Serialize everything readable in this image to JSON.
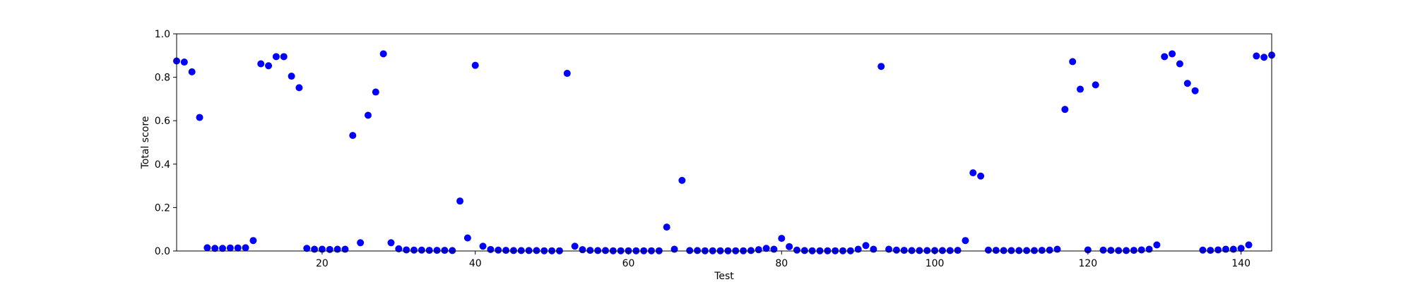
{
  "chart_data": {
    "type": "scatter",
    "xlabel": "Test",
    "ylabel": "Total score",
    "xlim": [
      1,
      144
    ],
    "ylim": [
      0,
      1.0
    ],
    "xticks": [
      20,
      40,
      60,
      80,
      100,
      120,
      140
    ],
    "yticks": [
      0.0,
      0.2,
      0.4,
      0.6,
      0.8,
      1.0
    ],
    "xtick_labels": [
      "20",
      "40",
      "60",
      "80",
      "100",
      "120",
      "140"
    ],
    "ytick_labels": [
      "0.0",
      "0.2",
      "0.4",
      "0.6",
      "0.8",
      "1.0"
    ],
    "grid": false,
    "marker_color": "#0000ff",
    "points": [
      [
        1,
        0.875
      ],
      [
        2,
        0.87
      ],
      [
        3,
        0.825
      ],
      [
        4,
        0.615
      ],
      [
        5,
        0.015
      ],
      [
        6,
        0.012
      ],
      [
        7,
        0.012
      ],
      [
        8,
        0.014
      ],
      [
        9,
        0.014
      ],
      [
        10,
        0.015
      ],
      [
        11,
        0.048
      ],
      [
        12,
        0.862
      ],
      [
        13,
        0.853
      ],
      [
        14,
        0.895
      ],
      [
        15,
        0.895
      ],
      [
        16,
        0.805
      ],
      [
        17,
        0.752
      ],
      [
        18,
        0.012
      ],
      [
        19,
        0.008
      ],
      [
        20,
        0.008
      ],
      [
        21,
        0.007
      ],
      [
        22,
        0.008
      ],
      [
        23,
        0.008
      ],
      [
        24,
        0.532
      ],
      [
        25,
        0.038
      ],
      [
        26,
        0.625
      ],
      [
        27,
        0.732
      ],
      [
        28,
        0.908
      ],
      [
        29,
        0.038
      ],
      [
        30,
        0.01
      ],
      [
        31,
        0.005
      ],
      [
        32,
        0.004
      ],
      [
        33,
        0.004
      ],
      [
        34,
        0.003
      ],
      [
        35,
        0.003
      ],
      [
        36,
        0.003
      ],
      [
        37,
        0.002
      ],
      [
        38,
        0.23
      ],
      [
        39,
        0.06
      ],
      [
        40,
        0.855
      ],
      [
        41,
        0.022
      ],
      [
        42,
        0.007
      ],
      [
        43,
        0.004
      ],
      [
        44,
        0.003
      ],
      [
        45,
        0.002
      ],
      [
        46,
        0.002
      ],
      [
        47,
        0.002
      ],
      [
        48,
        0.002
      ],
      [
        49,
        0.001
      ],
      [
        50,
        0.001
      ],
      [
        51,
        0.001
      ],
      [
        52,
        0.818
      ],
      [
        53,
        0.022
      ],
      [
        54,
        0.006
      ],
      [
        55,
        0.003
      ],
      [
        56,
        0.002
      ],
      [
        57,
        0.002
      ],
      [
        58,
        0.001
      ],
      [
        59,
        0.001
      ],
      [
        60,
        0.001
      ],
      [
        61,
        0.001
      ],
      [
        62,
        0.001
      ],
      [
        63,
        0.001
      ],
      [
        64,
        0.001
      ],
      [
        65,
        0.11
      ],
      [
        66,
        0.008
      ],
      [
        67,
        0.325
      ],
      [
        68,
        0.002
      ],
      [
        69,
        0.002
      ],
      [
        70,
        0.001
      ],
      [
        71,
        0.001
      ],
      [
        72,
        0.001
      ],
      [
        73,
        0.001
      ],
      [
        74,
        0.001
      ],
      [
        75,
        0.001
      ],
      [
        76,
        0.002
      ],
      [
        77,
        0.006
      ],
      [
        78,
        0.012
      ],
      [
        79,
        0.008
      ],
      [
        80,
        0.058
      ],
      [
        81,
        0.02
      ],
      [
        82,
        0.004
      ],
      [
        83,
        0.002
      ],
      [
        84,
        0.001
      ],
      [
        85,
        0.001
      ],
      [
        86,
        0.001
      ],
      [
        87,
        0.001
      ],
      [
        88,
        0.001
      ],
      [
        89,
        0.001
      ],
      [
        90,
        0.008
      ],
      [
        91,
        0.025
      ],
      [
        92,
        0.008
      ],
      [
        93,
        0.85
      ],
      [
        94,
        0.008
      ],
      [
        95,
        0.004
      ],
      [
        96,
        0.003
      ],
      [
        97,
        0.002
      ],
      [
        98,
        0.002
      ],
      [
        99,
        0.002
      ],
      [
        100,
        0.002
      ],
      [
        101,
        0.002
      ],
      [
        102,
        0.002
      ],
      [
        103,
        0.003
      ],
      [
        104,
        0.048
      ],
      [
        105,
        0.36
      ],
      [
        106,
        0.345
      ],
      [
        107,
        0.004
      ],
      [
        108,
        0.003
      ],
      [
        109,
        0.002
      ],
      [
        110,
        0.002
      ],
      [
        111,
        0.002
      ],
      [
        112,
        0.002
      ],
      [
        113,
        0.002
      ],
      [
        114,
        0.003
      ],
      [
        115,
        0.004
      ],
      [
        116,
        0.008
      ],
      [
        117,
        0.652
      ],
      [
        118,
        0.872
      ],
      [
        119,
        0.745
      ],
      [
        120,
        0.005
      ],
      [
        121,
        0.765
      ],
      [
        122,
        0.004
      ],
      [
        123,
        0.003
      ],
      [
        124,
        0.002
      ],
      [
        125,
        0.002
      ],
      [
        126,
        0.003
      ],
      [
        127,
        0.005
      ],
      [
        128,
        0.008
      ],
      [
        129,
        0.028
      ],
      [
        130,
        0.895
      ],
      [
        131,
        0.908
      ],
      [
        132,
        0.862
      ],
      [
        133,
        0.772
      ],
      [
        134,
        0.738
      ],
      [
        135,
        0.004
      ],
      [
        136,
        0.003
      ],
      [
        137,
        0.005
      ],
      [
        138,
        0.008
      ],
      [
        139,
        0.008
      ],
      [
        140,
        0.012
      ],
      [
        141,
        0.028
      ],
      [
        142,
        0.898
      ],
      [
        143,
        0.892
      ],
      [
        144,
        0.902
      ]
    ]
  }
}
